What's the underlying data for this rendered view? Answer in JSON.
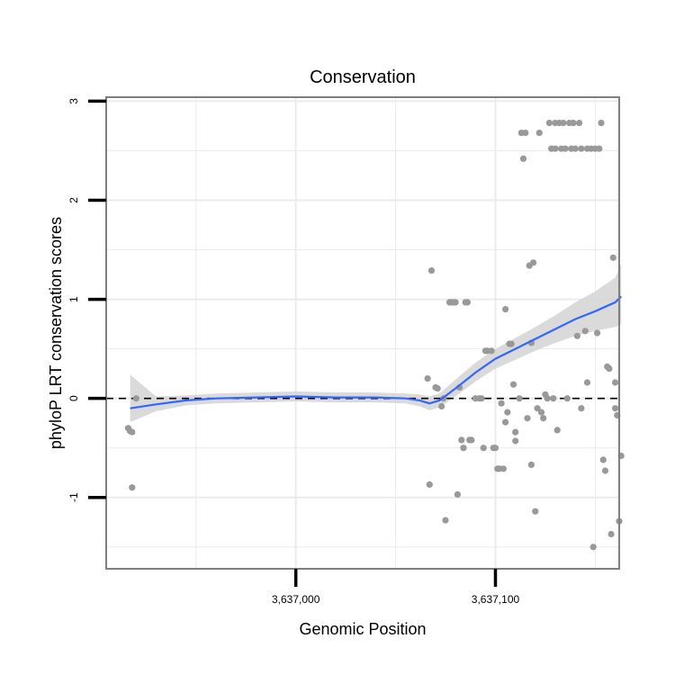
{
  "chart_data": {
    "type": "scatter",
    "title": "Conservation",
    "xlabel": "Genomic Position",
    "ylabel": "phyloP LRT conservation scores",
    "xlim": [
      3636905,
      3637162
    ],
    "ylim": [
      -1.72,
      3.04
    ],
    "x_ticks": [
      {
        "value": 3637000,
        "label": "3,637,000"
      },
      {
        "value": 3637100,
        "label": "3,637,100"
      }
    ],
    "y_ticks": [
      {
        "value": -1,
        "label": "-1"
      },
      {
        "value": 0,
        "label": "0"
      },
      {
        "value": 1,
        "label": "1"
      },
      {
        "value": 2,
        "label": "2"
      },
      {
        "value": 3,
        "label": "3"
      }
    ],
    "reference_line": {
      "y": 0,
      "style": "dashed"
    },
    "grid": true,
    "colors": {
      "points": "#999999",
      "smooth": "#3366ff",
      "band": "#d3d3d3",
      "grid": "#ebebeb",
      "frame": "#7f7f7f"
    },
    "points": [
      {
        "x": 3636916,
        "y": -0.3
      },
      {
        "x": 3636917,
        "y": -0.33
      },
      {
        "x": 3636918,
        "y": -0.34
      },
      {
        "x": 3636918,
        "y": -0.9
      },
      {
        "x": 3636920,
        "y": 0.0
      },
      {
        "x": 3637066,
        "y": 0.2
      },
      {
        "x": 3637067,
        "y": -0.87
      },
      {
        "x": 3637068,
        "y": 1.29
      },
      {
        "x": 3637070,
        "y": 0.11
      },
      {
        "x": 3637071,
        "y": 0.1
      },
      {
        "x": 3637073,
        "y": -0.08
      },
      {
        "x": 3637074,
        "y": 0.0
      },
      {
        "x": 3637075,
        "y": -1.23
      },
      {
        "x": 3637077,
        "y": 0.97
      },
      {
        "x": 3637078,
        "y": 0.97
      },
      {
        "x": 3637079,
        "y": 0.97
      },
      {
        "x": 3637080,
        "y": 0.97
      },
      {
        "x": 3637081,
        "y": -0.97
      },
      {
        "x": 3637082,
        "y": 0.11
      },
      {
        "x": 3637083,
        "y": -0.42
      },
      {
        "x": 3637084,
        "y": -0.5
      },
      {
        "x": 3637085,
        "y": 0.97
      },
      {
        "x": 3637086,
        "y": 0.97
      },
      {
        "x": 3637087,
        "y": -0.42
      },
      {
        "x": 3637088,
        "y": -0.42
      },
      {
        "x": 3637090,
        "y": 0.0
      },
      {
        "x": 3637092,
        "y": 0.0
      },
      {
        "x": 3637093,
        "y": 0.0
      },
      {
        "x": 3637094,
        "y": -0.5
      },
      {
        "x": 3637095,
        "y": 0.48
      },
      {
        "x": 3637096,
        "y": 0.48
      },
      {
        "x": 3637098,
        "y": 0.48
      },
      {
        "x": 3637099,
        "y": -0.5
      },
      {
        "x": 3637100,
        "y": -0.5
      },
      {
        "x": 3637101,
        "y": -0.71
      },
      {
        "x": 3637102,
        "y": -0.71
      },
      {
        "x": 3637103,
        "y": -0.05
      },
      {
        "x": 3637104,
        "y": -0.71
      },
      {
        "x": 3637105,
        "y": -0.24
      },
      {
        "x": 3637105,
        "y": 0.9
      },
      {
        "x": 3637106,
        "y": -0.14
      },
      {
        "x": 3637107,
        "y": 0.55
      },
      {
        "x": 3637108,
        "y": 0.55
      },
      {
        "x": 3637109,
        "y": 0.14
      },
      {
        "x": 3637110,
        "y": -0.34
      },
      {
        "x": 3637110,
        "y": -0.43
      },
      {
        "x": 3637112,
        "y": 0.0
      },
      {
        "x": 3637113,
        "y": 2.68
      },
      {
        "x": 3637114,
        "y": 2.42
      },
      {
        "x": 3637115,
        "y": 2.68
      },
      {
        "x": 3637116,
        "y": -0.2
      },
      {
        "x": 3637117,
        "y": 1.34
      },
      {
        "x": 3637118,
        "y": 0.56
      },
      {
        "x": 3637118,
        "y": -0.67
      },
      {
        "x": 3637119,
        "y": 1.37
      },
      {
        "x": 3637120,
        "y": -1.14
      },
      {
        "x": 3637121,
        "y": -0.1
      },
      {
        "x": 3637122,
        "y": 2.68
      },
      {
        "x": 3637123,
        "y": -0.14
      },
      {
        "x": 3637124,
        "y": -0.2
      },
      {
        "x": 3637125,
        "y": 0.04
      },
      {
        "x": 3637126,
        "y": 0.0
      },
      {
        "x": 3637127,
        "y": 2.78
      },
      {
        "x": 3637128,
        "y": 2.52
      },
      {
        "x": 3637129,
        "y": 0.0
      },
      {
        "x": 3637130,
        "y": 2.78
      },
      {
        "x": 3637130,
        "y": 2.52
      },
      {
        "x": 3637131,
        "y": -0.32
      },
      {
        "x": 3637132,
        "y": 2.78
      },
      {
        "x": 3637133,
        "y": 2.52
      },
      {
        "x": 3637134,
        "y": 2.78
      },
      {
        "x": 3637135,
        "y": 2.52
      },
      {
        "x": 3637136,
        "y": 0.0
      },
      {
        "x": 3637137,
        "y": 2.78
      },
      {
        "x": 3637138,
        "y": 2.52
      },
      {
        "x": 3637139,
        "y": 2.78
      },
      {
        "x": 3637140,
        "y": 2.52
      },
      {
        "x": 3637141,
        "y": 0.63
      },
      {
        "x": 3637142,
        "y": 2.78
      },
      {
        "x": 3637143,
        "y": -0.1
      },
      {
        "x": 3637143,
        "y": 2.52
      },
      {
        "x": 3637145,
        "y": 0.68
      },
      {
        "x": 3637146,
        "y": 0.16
      },
      {
        "x": 3637146,
        "y": 2.52
      },
      {
        "x": 3637148,
        "y": 2.52
      },
      {
        "x": 3637149,
        "y": -1.5
      },
      {
        "x": 3637150,
        "y": 2.52
      },
      {
        "x": 3637151,
        "y": 0.66
      },
      {
        "x": 3637152,
        "y": 2.52
      },
      {
        "x": 3637153,
        "y": 2.78
      },
      {
        "x": 3637154,
        "y": -0.62
      },
      {
        "x": 3637155,
        "y": -0.73
      },
      {
        "x": 3637156,
        "y": 0.32
      },
      {
        "x": 3637157,
        "y": 0.3
      },
      {
        "x": 3637158,
        "y": -1.37
      },
      {
        "x": 3637159,
        "y": 1.42
      },
      {
        "x": 3637160,
        "y": 0.16
      },
      {
        "x": 3637160,
        "y": -0.1
      },
      {
        "x": 3637161,
        "y": -0.17
      },
      {
        "x": 3637162,
        "y": -1.24
      },
      {
        "x": 3637163,
        "y": -0.58
      }
    ],
    "smooth_line": {
      "x": [
        3636917,
        3636930,
        3636945,
        3636960,
        3636980,
        3637000,
        3637020,
        3637040,
        3637055,
        3637062,
        3637067,
        3637072,
        3637080,
        3637090,
        3637100,
        3637110,
        3637120,
        3637130,
        3637140,
        3637150,
        3637160,
        3637163
      ],
      "y": [
        -0.1,
        -0.06,
        -0.02,
        0.0,
        0.01,
        0.02,
        0.01,
        0.01,
        0.0,
        -0.02,
        -0.05,
        -0.02,
        0.1,
        0.26,
        0.4,
        0.5,
        0.6,
        0.7,
        0.8,
        0.88,
        0.97,
        1.03
      ],
      "lower": [
        -0.24,
        -0.13,
        -0.07,
        -0.05,
        -0.04,
        -0.03,
        -0.04,
        -0.04,
        -0.05,
        -0.08,
        -0.12,
        -0.09,
        0.02,
        0.17,
        0.3,
        0.39,
        0.48,
        0.56,
        0.63,
        0.68,
        0.72,
        0.75
      ],
      "upper": [
        0.24,
        0.02,
        0.03,
        0.05,
        0.06,
        0.07,
        0.06,
        0.06,
        0.05,
        0.04,
        0.02,
        0.05,
        0.19,
        0.36,
        0.5,
        0.61,
        0.72,
        0.84,
        0.97,
        1.08,
        1.22,
        1.36
      ]
    }
  }
}
